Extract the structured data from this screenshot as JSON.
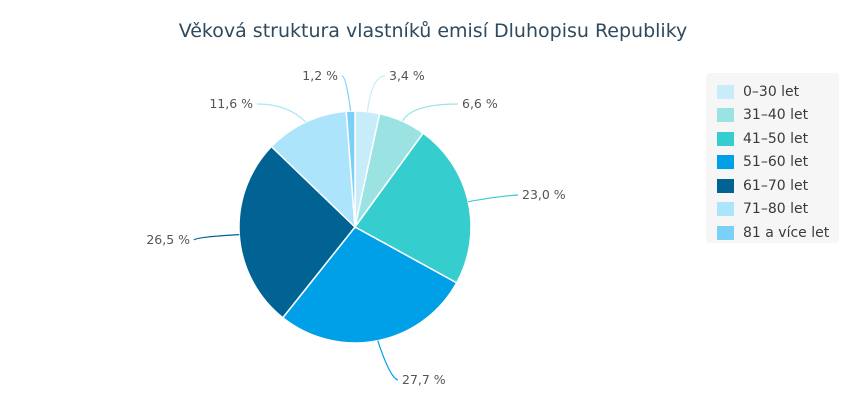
{
  "chart_data": {
    "type": "pie",
    "title": "Věková struktura vlastníků emisí Dluhopisu Republiky",
    "legend_position": "right",
    "slices": [
      {
        "label": "0–30 let",
        "value": 3.4,
        "display": "3,4 %",
        "color": "#c8ecfa"
      },
      {
        "label": "31–40 let",
        "value": 6.6,
        "display": "6,6 %",
        "color": "#9be3e3"
      },
      {
        "label": "41–50 let",
        "value": 23.0,
        "display": "23,0 %",
        "color": "#35cdcd"
      },
      {
        "label": "51–60 let",
        "value": 27.7,
        "display": "27,7 %",
        "color": "#00a0e8"
      },
      {
        "label": "61–70 let",
        "value": 26.5,
        "display": "26,5 %",
        "color": "#006394"
      },
      {
        "label": "71–80 let",
        "value": 11.6,
        "display": "11,6 %",
        "color": "#ace4fb"
      },
      {
        "label": "81 a více let",
        "value": 1.2,
        "display": "1,2 %",
        "color": "#7bd0f7"
      }
    ]
  }
}
